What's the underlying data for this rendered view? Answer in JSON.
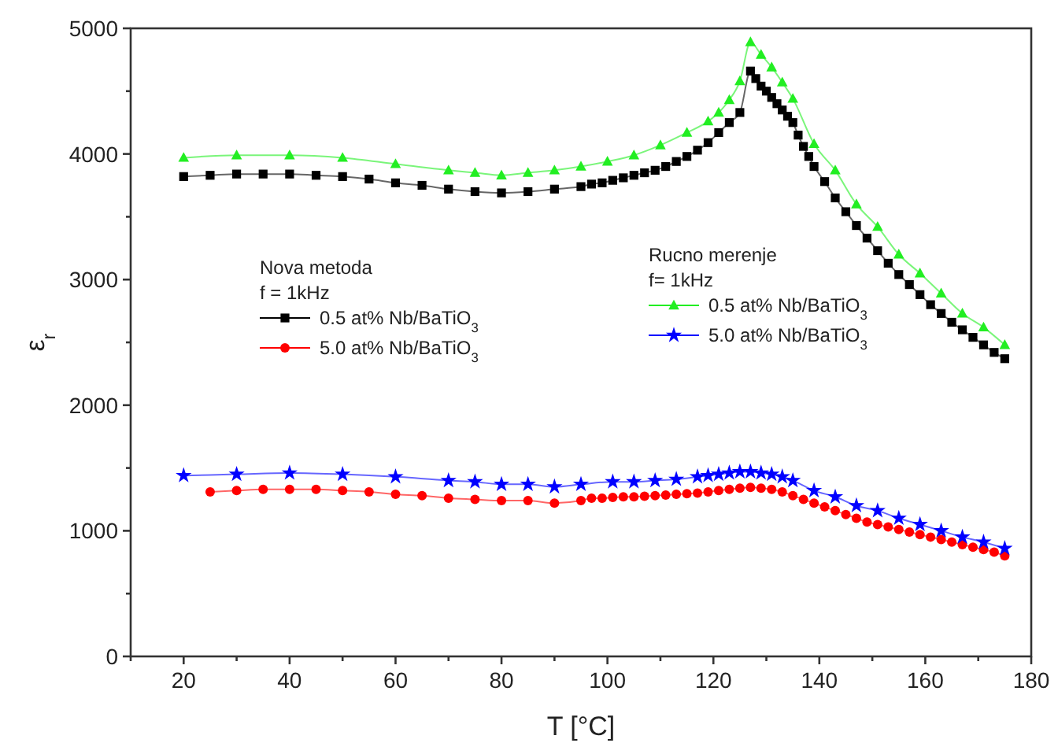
{
  "chart_data": {
    "type": "line",
    "xlabel": "T [°C]",
    "ylabel": "ε$_{r}$",
    "xlim": [
      10,
      180
    ],
    "xticks": [
      {
        "value": 10,
        "label": null
      },
      20,
      {
        "value": 30,
        "label": null
      },
      40,
      {
        "value": 50,
        "label": null
      },
      60,
      {
        "value": 70,
        "label": null
      },
      80,
      {
        "value": 90,
        "label": null
      },
      100,
      {
        "value": 110,
        "label": null
      },
      120,
      {
        "value": 130,
        "label": null
      },
      140,
      {
        "value": 150,
        "label": null
      },
      160,
      {
        "value": 170,
        "label": null
      },
      180
    ],
    "ylim": [
      0,
      5000
    ],
    "yticks": [
      0,
      {
        "value": 500,
        "label": null
      },
      1000,
      {
        "value": 1500,
        "label": null
      },
      2000,
      {
        "value": 2500,
        "label": null
      },
      3000,
      {
        "value": 3500,
        "label": null
      },
      4000,
      {
        "value": 4500,
        "label": null
      },
      5000
    ],
    "grid": false,
    "legend": "center",
    "line_style": "solid",
    "annotations": [
      "Nova metoda",
      "f = 1kHz",
      "Rucno merenje",
      "f= 1kHz"
    ],
    "series": [
      {
        "name": "0.5 at% Nb/BaTiO$_{3}$",
        "color": "#000000",
        "marker": "square",
        "x": [
          20,
          25,
          30,
          35,
          40,
          45,
          50,
          55,
          60,
          65,
          70,
          75,
          80,
          85,
          90,
          95,
          97,
          99,
          101,
          103,
          105,
          107,
          109,
          111,
          113,
          115,
          117,
          119,
          121,
          123,
          125,
          127,
          128,
          129,
          130,
          131,
          132,
          133,
          134,
          135,
          136,
          137,
          138,
          139,
          141,
          143,
          145,
          147,
          149,
          151,
          153,
          155,
          157,
          159,
          161,
          163,
          165,
          167,
          169,
          171,
          173,
          175
        ],
        "values": [
          3820,
          3830,
          3840,
          3840,
          3840,
          3830,
          3820,
          3800,
          3770,
          3750,
          3720,
          3700,
          3690,
          3700,
          3720,
          3740,
          3760,
          3770,
          3790,
          3810,
          3830,
          3850,
          3870,
          3900,
          3940,
          3980,
          4030,
          4090,
          4170,
          4250,
          4330,
          4660,
          4600,
          4540,
          4500,
          4450,
          4400,
          4350,
          4300,
          4250,
          4150,
          4060,
          3980,
          3900,
          3780,
          3650,
          3540,
          3430,
          3330,
          3230,
          3130,
          3040,
          2960,
          2880,
          2800,
          2730,
          2660,
          2600,
          2540,
          2480,
          2420,
          2370
        ]
      },
      {
        "name": "5.0 at% Nb/BaTiO$_{3}$",
        "color": "#ff0000",
        "marker": "circle",
        "x": [
          25,
          30,
          35,
          40,
          45,
          50,
          55,
          60,
          65,
          70,
          75,
          80,
          85,
          90,
          95,
          97,
          99,
          101,
          103,
          105,
          107,
          109,
          111,
          113,
          115,
          117,
          119,
          121,
          123,
          125,
          127,
          129,
          131,
          133,
          135,
          137,
          139,
          141,
          143,
          145,
          147,
          149,
          151,
          153,
          155,
          157,
          159,
          161,
          163,
          165,
          167,
          169,
          171,
          173,
          175
        ],
        "values": [
          1310,
          1320,
          1330,
          1330,
          1330,
          1320,
          1310,
          1290,
          1280,
          1260,
          1250,
          1240,
          1240,
          1220,
          1240,
          1260,
          1260,
          1265,
          1270,
          1270,
          1275,
          1280,
          1285,
          1290,
          1295,
          1300,
          1310,
          1320,
          1330,
          1340,
          1345,
          1340,
          1330,
          1310,
          1280,
          1250,
          1220,
          1190,
          1160,
          1130,
          1100,
          1070,
          1050,
          1030,
          1010,
          990,
          970,
          950,
          930,
          910,
          890,
          870,
          850,
          830,
          800
        ]
      },
      {
        "name": "0.5 at% Nb/BaTiO$_{3}$",
        "color": "#22ee22",
        "marker": "triangle",
        "x": [
          20,
          30,
          40,
          50,
          60,
          70,
          75,
          80,
          85,
          90,
          95,
          100,
          105,
          110,
          115,
          119,
          121,
          123,
          125,
          127,
          129,
          131,
          133,
          135,
          139,
          143,
          147,
          151,
          155,
          159,
          163,
          167,
          171,
          175
        ],
        "values": [
          3970,
          3990,
          3990,
          3970,
          3920,
          3870,
          3850,
          3830,
          3850,
          3870,
          3900,
          3940,
          3990,
          4070,
          4170,
          4260,
          4330,
          4430,
          4580,
          4890,
          4790,
          4690,
          4570,
          4440,
          4080,
          3870,
          3600,
          3420,
          3200,
          3050,
          2890,
          2730,
          2620,
          2480
        ]
      },
      {
        "name": "5.0 at% Nb/BaTiO$_{3}$",
        "color": "#0000ff",
        "marker": "star",
        "x": [
          20,
          30,
          40,
          50,
          60,
          70,
          75,
          80,
          85,
          90,
          95,
          101,
          105,
          109,
          113,
          117,
          119,
          121,
          123,
          125,
          127,
          129,
          131,
          133,
          135,
          139,
          143,
          147,
          151,
          155,
          159,
          163,
          167,
          171,
          175
        ],
        "values": [
          1440,
          1450,
          1460,
          1450,
          1430,
          1400,
          1390,
          1370,
          1370,
          1350,
          1370,
          1390,
          1390,
          1400,
          1410,
          1430,
          1440,
          1450,
          1460,
          1470,
          1470,
          1460,
          1450,
          1430,
          1400,
          1320,
          1270,
          1200,
          1160,
          1100,
          1050,
          1000,
          950,
          910,
          860
        ]
      }
    ]
  }
}
